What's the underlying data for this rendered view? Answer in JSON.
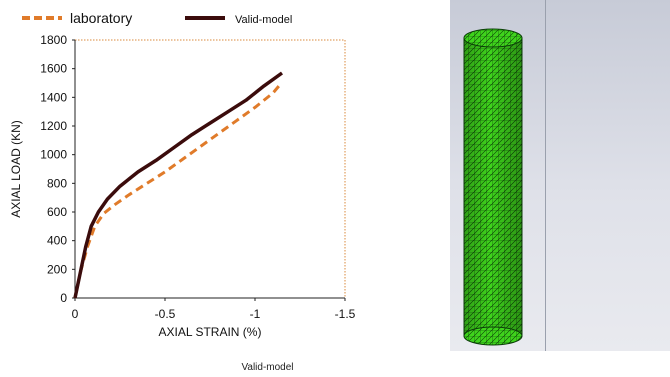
{
  "chart_data": {
    "type": "line",
    "xlabel": "AXIAL STRAIN (%)",
    "ylabel": "AXIAL LOAD (KN)",
    "xlim": [
      0,
      -1.5
    ],
    "ylim": [
      0,
      1800
    ],
    "x_ticks": [
      "0",
      "-0.5",
      "-1",
      "-1.5"
    ],
    "y_ticks": [
      "0",
      "200",
      "400",
      "600",
      "800",
      "1000",
      "1200",
      "1400",
      "1600",
      "1800"
    ],
    "x_tick_values": [
      0,
      -0.5,
      -1,
      -1.5
    ],
    "y_tick_values": [
      0,
      200,
      400,
      600,
      800,
      1000,
      1200,
      1400,
      1600,
      1800
    ],
    "legend_position": "top",
    "grid": false,
    "series": [
      {
        "name": "laboratory",
        "color": "#e07b2a",
        "style": "dashed",
        "x": [
          0,
          -0.03,
          -0.07,
          -0.11,
          -0.16,
          -0.22,
          -0.3,
          -0.4,
          -0.5,
          -0.6,
          -0.7,
          -0.8,
          -0.9,
          -1.0,
          -1.1,
          -1.14
        ],
        "y": [
          0,
          180,
          360,
          500,
          590,
          650,
          720,
          800,
          880,
          970,
          1060,
          1150,
          1240,
          1330,
          1430,
          1490
        ]
      },
      {
        "name": "Valid-model",
        "color": "#3b0c0c",
        "style": "solid",
        "x": [
          0,
          -0.03,
          -0.06,
          -0.09,
          -0.13,
          -0.18,
          -0.25,
          -0.35,
          -0.45,
          -0.55,
          -0.65,
          -0.75,
          -0.85,
          -0.95,
          -1.05,
          -1.15
        ],
        "y": [
          0,
          180,
          360,
          500,
          600,
          690,
          780,
          880,
          960,
          1050,
          1140,
          1220,
          1300,
          1380,
          1480,
          1570
        ]
      }
    ]
  },
  "caption": "Valid-model",
  "colors": {
    "mesh_green": "#3fd41c",
    "mesh_cyan": "#53d6d6",
    "load_arrows": "#c79be8",
    "boundary_conditions": "#f07f1f",
    "axis_triad": "#ffe04a"
  }
}
